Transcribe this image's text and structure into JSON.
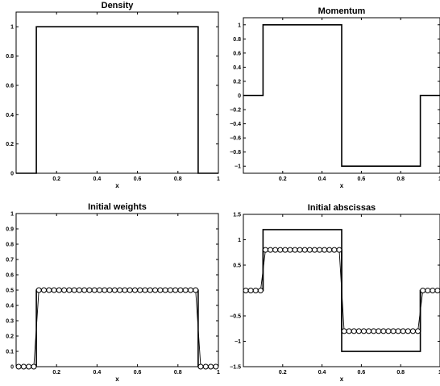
{
  "chart_data": [
    {
      "type": "line",
      "title": "Density",
      "xlabel": "x",
      "ylabel": "",
      "xlim": [
        0,
        1
      ],
      "ylim": [
        0,
        1.1
      ],
      "xticks": [
        "0.2",
        "0.4",
        "0.6",
        "0.8",
        "1"
      ],
      "yticks": [
        "0",
        "0.2",
        "0.4",
        "0.6",
        "0.8",
        "1"
      ],
      "series": [
        {
          "style": "line",
          "color": "#000000",
          "x": [
            0,
            0.1,
            0.1,
            0.9,
            0.9,
            1
          ],
          "y": [
            0,
            0,
            1,
            1,
            0,
            0
          ]
        }
      ]
    },
    {
      "type": "line",
      "title": "Momentum",
      "xlabel": "x",
      "ylabel": "",
      "xlim": [
        0,
        1
      ],
      "ylim": [
        -1.1,
        1.1
      ],
      "xticks": [
        "0.2",
        "0.4",
        "0.6",
        "0.8",
        "1"
      ],
      "yticks": [
        "−1",
        "−0.8",
        "−0.6",
        "−0.4",
        "−0.2",
        "0",
        "0.2",
        "0.4",
        "0.6",
        "0.8",
        "1"
      ],
      "series": [
        {
          "style": "line",
          "color": "#000000",
          "x": [
            0,
            0.1,
            0.1,
            0.5,
            0.5,
            0.9,
            0.9,
            1
          ],
          "y": [
            0,
            0,
            1,
            1,
            -1,
            -1,
            0,
            0
          ]
        }
      ]
    },
    {
      "type": "line",
      "title": "Initial weights",
      "xlabel": "x",
      "ylabel": "",
      "xlim": [
        0,
        1
      ],
      "ylim": [
        0,
        1
      ],
      "xticks": [
        "0.2",
        "0.4",
        "0.6",
        "0.8",
        "1"
      ],
      "yticks": [
        "0",
        "0.1",
        "0.2",
        "0.3",
        "0.4",
        "0.5",
        "0.6",
        "0.7",
        "0.8",
        "0.9",
        "1"
      ],
      "series": [
        {
          "style": "line",
          "color": "#000000",
          "x": [
            0,
            0.1,
            0.1,
            0.9,
            0.9,
            1
          ],
          "y": [
            0,
            0,
            0.5,
            0.5,
            0,
            0
          ]
        },
        {
          "style": "markers",
          "color": "#000000",
          "x": [
            0.0125,
            0.0375,
            0.0625,
            0.0875,
            0.1125,
            0.1375,
            0.1625,
            0.1875,
            0.2125,
            0.2375,
            0.2625,
            0.2875,
            0.3125,
            0.3375,
            0.3625,
            0.3875,
            0.4125,
            0.4375,
            0.4625,
            0.4875,
            0.5125,
            0.5375,
            0.5625,
            0.5875,
            0.6125,
            0.6375,
            0.6625,
            0.6875,
            0.7125,
            0.7375,
            0.7625,
            0.7875,
            0.8125,
            0.8375,
            0.8625,
            0.8875,
            0.9125,
            0.9375,
            0.9625,
            0.9875
          ],
          "y": [
            0,
            0,
            0,
            0,
            0.5,
            0.5,
            0.5,
            0.5,
            0.5,
            0.5,
            0.5,
            0.5,
            0.5,
            0.5,
            0.5,
            0.5,
            0.5,
            0.5,
            0.5,
            0.5,
            0.5,
            0.5,
            0.5,
            0.5,
            0.5,
            0.5,
            0.5,
            0.5,
            0.5,
            0.5,
            0.5,
            0.5,
            0.5,
            0.5,
            0.5,
            0.5,
            0,
            0,
            0,
            0
          ]
        }
      ]
    },
    {
      "type": "line",
      "title": "Initial abscissas",
      "xlabel": "x",
      "ylabel": "",
      "xlim": [
        0,
        1
      ],
      "ylim": [
        -1.5,
        1.5
      ],
      "xticks": [
        "0.2",
        "0.4",
        "0.6",
        "0.8",
        "1"
      ],
      "yticks": [
        "−1.5",
        "−1",
        "−0.5",
        "0.5",
        "1",
        "1.5"
      ],
      "series": [
        {
          "style": "line",
          "color": "#000000",
          "x": [
            0,
            0.1,
            0.1,
            0.5,
            0.5,
            0.9,
            0.9,
            1
          ],
          "y": [
            0,
            0,
            1.2,
            1.2,
            -1.2,
            -1.2,
            0,
            0
          ]
        },
        {
          "style": "line",
          "color": "#000000",
          "x": [
            0,
            0.1,
            0.1,
            0.5,
            0.5,
            0.9,
            0.9,
            1
          ],
          "y": [
            0,
            0,
            0.8,
            0.8,
            -0.8,
            -0.8,
            0,
            0
          ]
        },
        {
          "style": "markers",
          "color": "#000000",
          "x": [
            0.0125,
            0.0375,
            0.0625,
            0.0875,
            0.1125,
            0.1375,
            0.1625,
            0.1875,
            0.2125,
            0.2375,
            0.2625,
            0.2875,
            0.3125,
            0.3375,
            0.3625,
            0.3875,
            0.4125,
            0.4375,
            0.4625,
            0.4875,
            0.5125,
            0.5375,
            0.5625,
            0.5875,
            0.6125,
            0.6375,
            0.6625,
            0.6875,
            0.7125,
            0.7375,
            0.7625,
            0.7875,
            0.8125,
            0.8375,
            0.8625,
            0.8875,
            0.9125,
            0.9375,
            0.9625,
            0.9875
          ],
          "y": [
            0,
            0,
            0,
            0,
            0.8,
            0.8,
            0.8,
            0.8,
            0.8,
            0.8,
            0.8,
            0.8,
            0.8,
            0.8,
            0.8,
            0.8,
            0.8,
            0.8,
            0.8,
            0.8,
            -0.8,
            -0.8,
            -0.8,
            -0.8,
            -0.8,
            -0.8,
            -0.8,
            -0.8,
            -0.8,
            -0.8,
            -0.8,
            -0.8,
            -0.8,
            -0.8,
            -0.8,
            -0.8,
            0,
            0,
            0,
            0
          ]
        }
      ]
    }
  ]
}
